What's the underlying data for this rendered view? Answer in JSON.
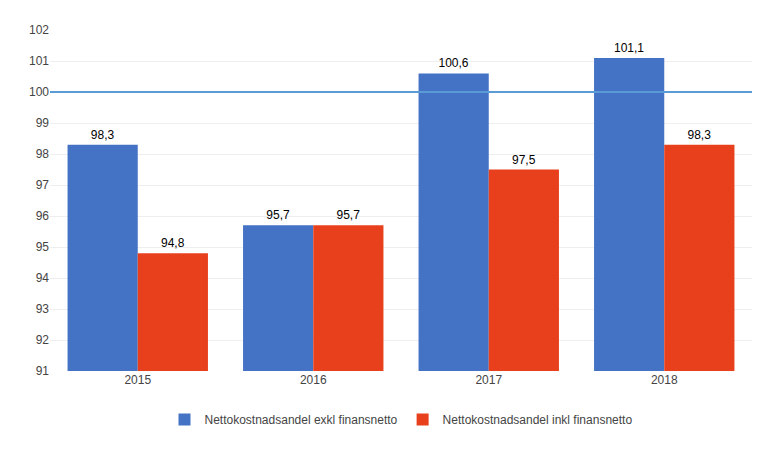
{
  "chart_data": {
    "type": "bar",
    "categories": [
      "2015",
      "2016",
      "2017",
      "2018"
    ],
    "series": [
      {
        "name": "Nettokostnadsandel exkl finansnetto",
        "color": "#4472C4",
        "values": [
          98.3,
          95.7,
          100.6,
          101.1
        ],
        "value_labels": [
          "98,3",
          "95,7",
          "100,6",
          "101,1"
        ]
      },
      {
        "name": "Nettokostnadsandel inkl finansnetto",
        "color": "#E8401C",
        "values": [
          94.8,
          95.7,
          97.5,
          98.3
        ],
        "value_labels": [
          "94,8",
          "95,7",
          "97,5",
          "98,3"
        ]
      }
    ],
    "ylim": [
      91,
      102
    ],
    "yticks": [
      91,
      92,
      93,
      94,
      95,
      96,
      97,
      98,
      99,
      100,
      101,
      102
    ],
    "reference_line": {
      "value": 100,
      "color": "#5B9BD5"
    },
    "grid": true,
    "legend": "bottom",
    "data_labels": true
  }
}
